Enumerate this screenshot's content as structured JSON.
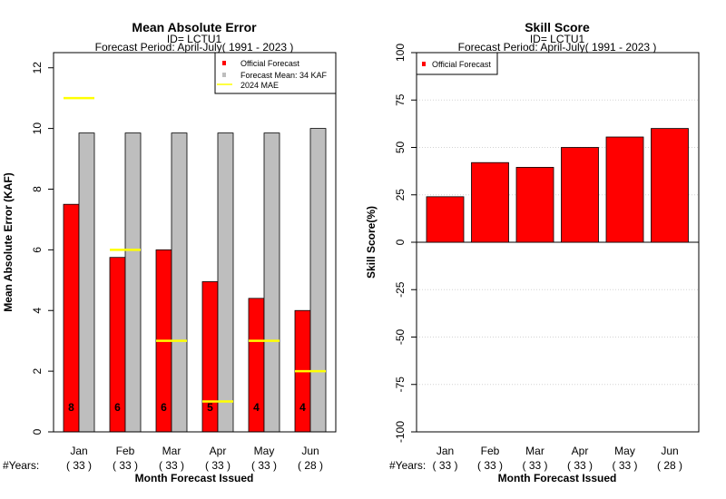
{
  "chart_data": [
    {
      "type": "bar",
      "title": "Mean Absolute Error",
      "subtitle_id": "ID= LCTU1",
      "subtitle_period": "Forecast Period: April-July( 1991 - 2023 )",
      "ylabel": "Mean Absolute Error (KAF)",
      "xlabel": "Month Forecast Issued",
      "years_label": "#Years:",
      "categories": [
        "Jan",
        "Feb",
        "Mar",
        "Apr",
        "May",
        "Jun"
      ],
      "years": [
        "( 33 )",
        "( 33 )",
        "( 33 )",
        "( 33 )",
        "( 33 )",
        "( 28 )"
      ],
      "ylim": [
        0,
        12.5
      ],
      "yticks": [
        "0",
        "2",
        "4",
        "6",
        "8",
        "10",
        "12"
      ],
      "series": [
        {
          "name": "Official Forecast",
          "color": "#ff0000",
          "values": [
            7.5,
            5.75,
            6.0,
            4.95,
            4.4,
            4.0
          ]
        },
        {
          "name": "Forecast Mean: 34 KAF",
          "color": "#bebebe",
          "values": [
            9.85,
            9.85,
            9.85,
            9.85,
            9.85,
            10.0
          ]
        }
      ],
      "mae_2024": {
        "name": " 2024  MAE",
        "color": "#ffff00",
        "values": [
          11.0,
          6.0,
          3.0,
          1.0,
          3.0,
          2.0
        ]
      },
      "bar_counts": [
        "8",
        "6",
        "6",
        "5",
        "4",
        "4"
      ],
      "legend_position": "top-right",
      "grid": false
    },
    {
      "type": "bar",
      "title": "Skill Score",
      "subtitle_id": "ID= LCTU1",
      "subtitle_period": "Forecast Period: April-July( 1991 - 2023 )",
      "ylabel": "Skill Score(%)",
      "xlabel": "Month Forecast Issued",
      "years_label": "#Years:",
      "categories": [
        "Jan",
        "Feb",
        "Mar",
        "Apr",
        "May",
        "Jun"
      ],
      "years": [
        "( 33 )",
        "( 33 )",
        "( 33 )",
        "( 33 )",
        "( 33 )",
        "( 28 )"
      ],
      "ylim": [
        -100,
        100
      ],
      "yticks": [
        "-100",
        "-75",
        "-50",
        "-25",
        "0",
        "25",
        "50",
        "75",
        "100"
      ],
      "series": [
        {
          "name": "Official Forecast",
          "color": "#ff0000",
          "values": [
            24,
            42,
            39.5,
            50,
            55.5,
            60
          ]
        }
      ],
      "legend_position": "top-left",
      "grid": true
    }
  ]
}
